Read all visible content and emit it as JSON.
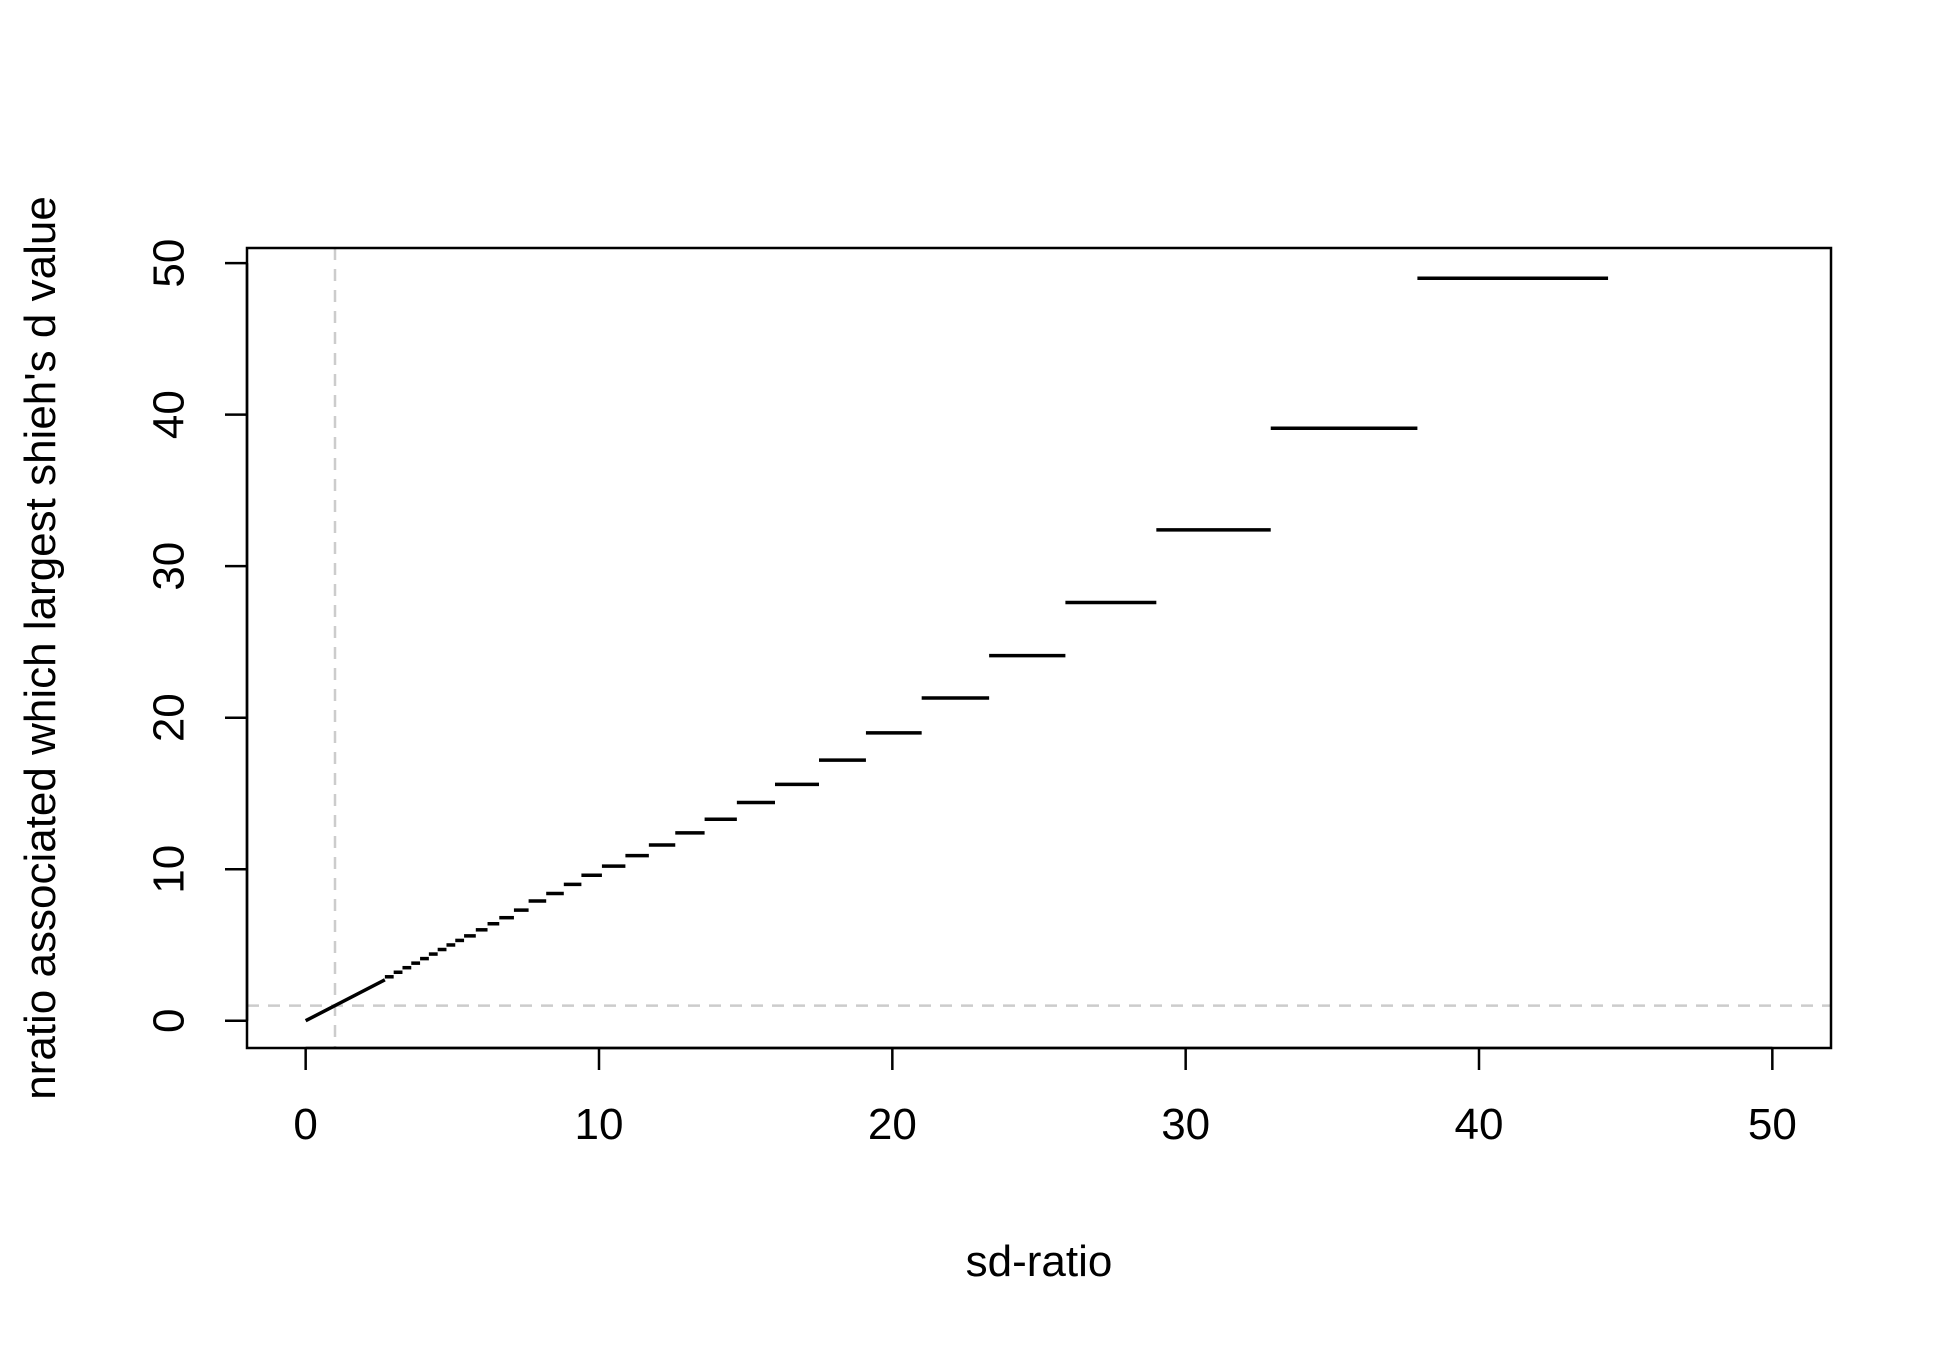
{
  "chart_data": {
    "type": "line",
    "title": "",
    "xlabel": "sd-ratio",
    "ylabel": "nratio associated which largest shieh's d value",
    "xlim": [
      -2,
      52
    ],
    "ylim": [
      -1.8,
      51
    ],
    "xticks": [
      0,
      10,
      20,
      30,
      40,
      50
    ],
    "yticks": [
      0,
      10,
      20,
      30,
      40,
      50
    ],
    "reference_lines": [
      {
        "orientation": "vertical",
        "value": 1,
        "style": "dashed",
        "color": "#cccccc"
      },
      {
        "orientation": "horizontal",
        "value": 1,
        "style": "dashed",
        "color": "#cccccc"
      }
    ],
    "series": [
      {
        "color": "#000000",
        "segments": [
          {
            "x": [
              0,
              2.7
            ],
            "y": [
              0,
              2.7
            ]
          },
          {
            "x": [
              2.7,
              3.0
            ],
            "y": [
              2.9,
              2.9
            ]
          },
          {
            "x": [
              3.0,
              3.3
            ],
            "y": [
              3.2,
              3.2
            ]
          },
          {
            "x": [
              3.3,
              3.6
            ],
            "y": [
              3.5,
              3.5
            ]
          },
          {
            "x": [
              3.6,
              3.9
            ],
            "y": [
              3.8,
              3.8
            ]
          },
          {
            "x": [
              3.9,
              4.2
            ],
            "y": [
              4.1,
              4.1
            ]
          },
          {
            "x": [
              4.2,
              4.5
            ],
            "y": [
              4.4,
              4.4
            ]
          },
          {
            "x": [
              4.5,
              4.8
            ],
            "y": [
              4.7,
              4.7
            ]
          },
          {
            "x": [
              4.8,
              5.1
            ],
            "y": [
              5.0,
              5.0
            ]
          },
          {
            "x": [
              5.1,
              5.4
            ],
            "y": [
              5.3,
              5.3
            ]
          },
          {
            "x": [
              5.4,
              5.8
            ],
            "y": [
              5.6,
              5.6
            ]
          },
          {
            "x": [
              5.8,
              6.2
            ],
            "y": [
              6.0,
              6.0
            ]
          },
          {
            "x": [
              6.2,
              6.6
            ],
            "y": [
              6.4,
              6.4
            ]
          },
          {
            "x": [
              6.6,
              7.1
            ],
            "y": [
              6.8,
              6.8
            ]
          },
          {
            "x": [
              7.1,
              7.6
            ],
            "y": [
              7.3,
              7.3
            ]
          },
          {
            "x": [
              7.6,
              8.2
            ],
            "y": [
              7.9,
              7.9
            ]
          },
          {
            "x": [
              8.2,
              8.8
            ],
            "y": [
              8.4,
              8.4
            ]
          },
          {
            "x": [
              8.8,
              9.4
            ],
            "y": [
              9.0,
              9.0
            ]
          },
          {
            "x": [
              9.4,
              10.1
            ],
            "y": [
              9.6,
              9.6
            ]
          },
          {
            "x": [
              10.1,
              10.9
            ],
            "y": [
              10.2,
              10.2
            ]
          },
          {
            "x": [
              10.9,
              11.7
            ],
            "y": [
              10.9,
              10.9
            ]
          },
          {
            "x": [
              11.7,
              12.6
            ],
            "y": [
              11.6,
              11.6
            ]
          },
          {
            "x": [
              12.6,
              13.6
            ],
            "y": [
              12.4,
              12.4
            ]
          },
          {
            "x": [
              13.6,
              14.7
            ],
            "y": [
              13.3,
              13.3
            ]
          },
          {
            "x": [
              14.7,
              16.0
            ],
            "y": [
              14.4,
              14.4
            ]
          },
          {
            "x": [
              16.0,
              17.5
            ],
            "y": [
              15.6,
              15.6
            ]
          },
          {
            "x": [
              17.5,
              19.1
            ],
            "y": [
              17.2,
              17.2
            ]
          },
          {
            "x": [
              19.1,
              21.0
            ],
            "y": [
              19.0,
              19.0
            ]
          },
          {
            "x": [
              21.0,
              23.3
            ],
            "y": [
              21.3,
              21.3
            ]
          },
          {
            "x": [
              23.3,
              25.9
            ],
            "y": [
              24.1,
              24.1
            ]
          },
          {
            "x": [
              25.9,
              29.0
            ],
            "y": [
              27.6,
              27.6
            ]
          },
          {
            "x": [
              29.0,
              32.9
            ],
            "y": [
              32.4,
              32.4
            ]
          },
          {
            "x": [
              32.9,
              37.9
            ],
            "y": [
              39.1,
              39.1
            ]
          },
          {
            "x": [
              37.9,
              44.4
            ],
            "y": [
              49.0,
              49.0
            ]
          }
        ]
      }
    ]
  }
}
